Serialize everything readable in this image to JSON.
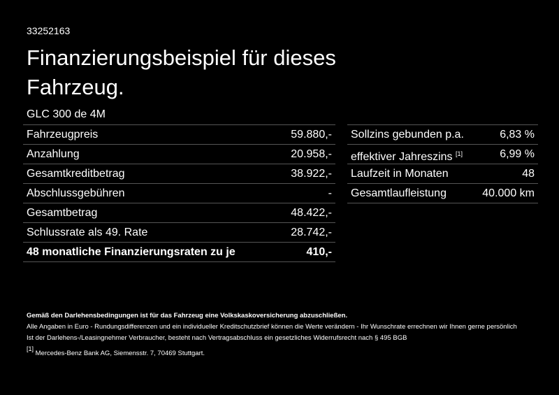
{
  "header": {
    "id": "33252163",
    "title_lines": [
      "Finanzierungsbeispiel für dieses",
      "Fahrzeug."
    ]
  },
  "model": "GLC 300 de 4M",
  "left_table": {
    "rows": [
      [
        "Fahrzeugpreis",
        "59.880,-"
      ],
      [
        "Anzahlung",
        "20.958,-"
      ],
      [
        "Gesamtkreditbetrag",
        "38.922,-"
      ],
      [
        "Abschlussgebühren",
        "-"
      ],
      [
        "Gesamtbetrag",
        "48.422,-"
      ],
      [
        "Schlussrate als 49. Rate",
        "28.742,-"
      ],
      [
        "48 monatliche Finanzierungsraten zu je",
        "410,-"
      ]
    ]
  },
  "right_table": {
    "rows": [
      {
        "label": "Sollzins gebunden p.a.",
        "value": "6,83 %"
      },
      {
        "label": "effektiver Jahreszins",
        "note": "[1]",
        "value": "6,99 %"
      },
      {
        "label": "Laufzeit in Monaten",
        "value": "48"
      },
      {
        "label": "Gesamtlaufleistung",
        "value": "40.000 km"
      }
    ]
  },
  "footnotes": {
    "bold": "Gemäß den Darlehensbedingungen ist für das Fahrzeug eine Volkskaskoversicherung abzuschließen.",
    "lines": [
      "Alle Angaben in Euro - Rundungsdifferenzen und ein individueller Kreditschutzbrief können die Werte verändern - Ihr Wunschrate errechnen wir Ihnen gerne persönlich",
      "Ist der Darlehens-/Leasingnehmer Verbraucher, besteht nach Vertragsabschluss ein gesetzliches Widerrufsrecht nach § 495 BGB"
    ],
    "ref": {
      "marker": "[1]",
      "text": "Mercedes-Benz Bank AG, Siemensstr. 7, 70469 Stuttgart."
    }
  }
}
